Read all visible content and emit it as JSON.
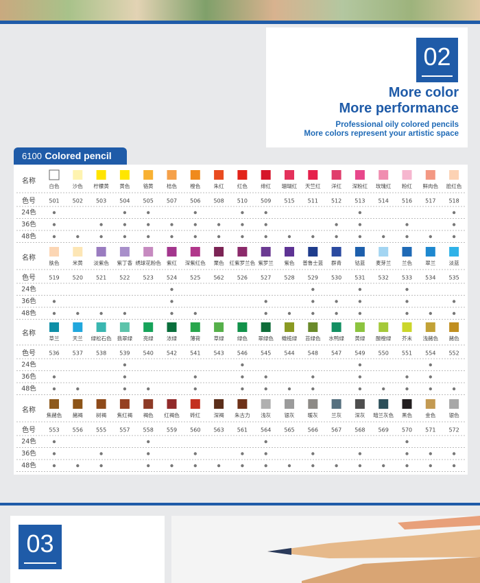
{
  "header": {
    "number": "02",
    "title_lines": [
      "More color",
      "More performance"
    ],
    "subtitle_lines": [
      "Professional oily colored pencils",
      "More colors represent your artistic space"
    ]
  },
  "table": {
    "tab_code": "6100",
    "tab_title": "Colored pencil",
    "row_labels": {
      "name": "名称",
      "code": "色号"
    },
    "set_labels": [
      "24色",
      "36色",
      "48色"
    ],
    "blocks": [
      {
        "names": [
          "白色",
          "沙色",
          "柠檬黄",
          "黄色",
          "铬黄",
          "桔色",
          "橙色",
          "朱红",
          "红色",
          "绯红",
          "珊瑚红",
          "天竺红",
          "洋红",
          "深粉红",
          "玫瑰红",
          "粉红",
          "鲜肉色",
          "脸红色"
        ],
        "codes": [
          "501",
          "502",
          "503",
          "504",
          "505",
          "507",
          "506",
          "508",
          "510",
          "509",
          "515",
          "511",
          "512",
          "513",
          "514",
          "516",
          "517",
          "518"
        ],
        "colors": [
          "#ffffff",
          "#fef3b0",
          "#ffe400",
          "#ffe600",
          "#f8b133",
          "#f5a14a",
          "#f08a1c",
          "#e94b20",
          "#e2231a",
          "#d6152a",
          "#e4315b",
          "#e5204b",
          "#e03d6c",
          "#e8478b",
          "#f08db0",
          "#f6b6cf",
          "#f39883",
          "#fcd2b4"
        ],
        "sets": [
          [
            0,
            3,
            4,
            6,
            8,
            9,
            13,
            17
          ],
          [
            0,
            2,
            3,
            4,
            5,
            6,
            7,
            8,
            9,
            12,
            13,
            15,
            17
          ],
          [
            0,
            1,
            2,
            3,
            4,
            5,
            6,
            7,
            8,
            9,
            10,
            11,
            12,
            13,
            14,
            15,
            16,
            17
          ]
        ]
      },
      {
        "names": [
          "肤色",
          "米黄",
          "淡紫色",
          "紫丁香",
          "绣球花粉色",
          "紫红",
          "深紫红色",
          "栗色",
          "红紫罗兰色",
          "紫罗兰",
          "紫色",
          "普鲁士蓝",
          "群青",
          "钴蓝",
          "麦芽兰",
          "兰色",
          "翠兰",
          "淡蓝"
        ],
        "codes": [
          "519",
          "520",
          "521",
          "522",
          "523",
          "524",
          "525",
          "562",
          "526",
          "527",
          "528",
          "529",
          "530",
          "531",
          "532",
          "533",
          "534",
          "535"
        ],
        "colors": [
          "#fcd6b4",
          "#fde6b5",
          "#9a7cc0",
          "#a88fca",
          "#c68ac0",
          "#a3368d",
          "#b1378b",
          "#7c2455",
          "#8b2a6a",
          "#6b3a92",
          "#5e3394",
          "#1e3c8c",
          "#2b4aa0",
          "#1d5fac",
          "#a3d5f2",
          "#1f6ab6",
          "#1e88cf",
          "#2fb2e8"
        ],
        "sets": [
          [
            5,
            11,
            13,
            15
          ],
          [
            0,
            5,
            9,
            11,
            12,
            13,
            15,
            17
          ],
          [
            0,
            1,
            2,
            3,
            5,
            6,
            9,
            10,
            11,
            12,
            13,
            15,
            16,
            17
          ]
        ]
      },
      {
        "names": [
          "草兰",
          "天兰",
          "绿松石色",
          "翡翠绿",
          "亮绿",
          "浓绿",
          "薄荷",
          "草绿",
          "绿色",
          "翠绿色",
          "橄榄绿",
          "苔绿色",
          "水鸭绿",
          "黄绿",
          "酸橙绿",
          "芥末",
          "浅赭色",
          "赭色"
        ],
        "codes": [
          "536",
          "537",
          "538",
          "539",
          "540",
          "542",
          "541",
          "543",
          "546",
          "545",
          "544",
          "548",
          "547",
          "549",
          "550",
          "551",
          "554",
          "552"
        ],
        "colors": [
          "#0f8fa7",
          "#20a7dd",
          "#3ab6b0",
          "#5cc3aa",
          "#17a35a",
          "#0a6f3c",
          "#29a64d",
          "#56b04a",
          "#12924a",
          "#106d3a",
          "#8a9a23",
          "#6a8a2a",
          "#138f62",
          "#8cc43f",
          "#a4c93a",
          "#cbd62a",
          "#c2a237",
          "#c18f20"
        ],
        "sets": [
          [
            3,
            8,
            13,
            16
          ],
          [
            0,
            3,
            6,
            8,
            9,
            11,
            13,
            15,
            16
          ],
          [
            0,
            1,
            3,
            4,
            6,
            8,
            9,
            10,
            11,
            13,
            14,
            15,
            16,
            17
          ]
        ]
      },
      {
        "names": [
          "焦赭色",
          "赭褐",
          "树褐",
          "焦红褐",
          "褐色",
          "红褐色",
          "砖红",
          "深褐",
          "朱古力",
          "浅灰",
          "银灰",
          "暖灰",
          "兰灰",
          "深灰",
          "暗兰灰色",
          "黑色",
          "金色",
          "银色"
        ],
        "codes": [
          "553",
          "556",
          "555",
          "557",
          "558",
          "559",
          "560",
          "563",
          "561",
          "564",
          "565",
          "566",
          "567",
          "568",
          "569",
          "570",
          "571",
          "572"
        ],
        "colors": [
          "#8e5a1d",
          "#8c5418",
          "#8e4a1a",
          "#954021",
          "#8d3a26",
          "#912a2a",
          "#c3301f",
          "#5b2e1a",
          "#6e3118",
          "#b0b0b0",
          "#9b9b9b",
          "#8d8a86",
          "#56707f",
          "#4e4e4e",
          "#2c4f5a",
          "#231f20",
          "#c39a52",
          "#a8a8a8"
        ],
        "sets": [
          [
            0,
            4,
            9,
            15
          ],
          [
            0,
            2,
            4,
            6,
            8,
            9,
            11,
            13,
            15,
            16,
            17
          ],
          [
            0,
            1,
            2,
            4,
            5,
            6,
            7,
            8,
            9,
            10,
            11,
            12,
            13,
            14,
            15,
            16,
            17
          ]
        ]
      }
    ]
  },
  "footer": {
    "number": "03"
  }
}
